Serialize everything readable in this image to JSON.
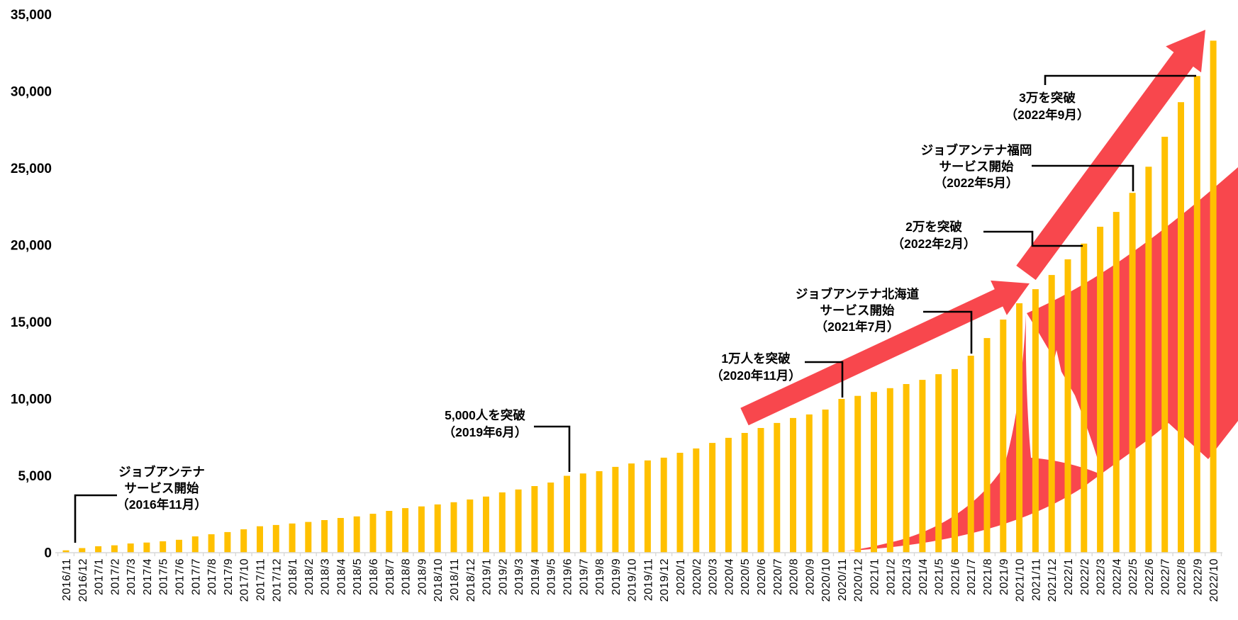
{
  "chart_data": {
    "type": "bar",
    "title": "",
    "xlabel": "",
    "ylabel": "",
    "ylim": [
      0,
      35000
    ],
    "grid": false,
    "legend": "none",
    "bar_color": "#FFC000",
    "arrow_color": "#F8474D",
    "axis_line_color": "#D9D9D9",
    "ytick_labels": [
      "0",
      "5,000",
      "10,000",
      "15,000",
      "20,000",
      "25,000",
      "30,000",
      "35,000"
    ],
    "ytick_values": [
      0,
      5000,
      10000,
      15000,
      20000,
      25000,
      30000,
      35000
    ],
    "categories": [
      "2016/11",
      "2016/12",
      "2017/1",
      "2017/2",
      "2017/3",
      "2017/4",
      "2017/5",
      "2017/6",
      "2017/7",
      "2017/8",
      "2017/9",
      "2017/10",
      "2017/11",
      "2017/12",
      "2018/1",
      "2018/2",
      "2018/3",
      "2018/4",
      "2018/5",
      "2018/6",
      "2018/7",
      "2018/8",
      "2018/9",
      "2018/10",
      "2018/11",
      "2018/12",
      "2019/1",
      "2019/2",
      "2019/3",
      "2019/4",
      "2019/5",
      "2019/6",
      "2019/7",
      "2019/8",
      "2019/9",
      "2019/10",
      "2019/11",
      "2019/12",
      "2020/1",
      "2020/2",
      "2020/3",
      "2020/4",
      "2020/5",
      "2020/6",
      "2020/7",
      "2020/8",
      "2020/9",
      "2020/10",
      "2020/11",
      "2020/12",
      "2021/1",
      "2021/2",
      "2021/3",
      "2021/4",
      "2021/5",
      "2021/6",
      "2021/7",
      "2021/8",
      "2021/9",
      "2021/10",
      "2021/11",
      "2021/12",
      "2022/1",
      "2022/2",
      "2022/3",
      "2022/4",
      "2022/5",
      "2022/6",
      "2022/7",
      "2022/8",
      "2022/9",
      "2022/10"
    ],
    "values": [
      150,
      300,
      420,
      480,
      600,
      660,
      740,
      840,
      1060,
      1200,
      1340,
      1520,
      1720,
      1800,
      1900,
      2000,
      2120,
      2260,
      2360,
      2530,
      2720,
      2900,
      3010,
      3140,
      3280,
      3460,
      3650,
      3920,
      4110,
      4330,
      4560,
      5000,
      5150,
      5300,
      5580,
      5800,
      6000,
      6180,
      6500,
      6780,
      7140,
      7470,
      7790,
      8110,
      8440,
      8760,
      8990,
      9310,
      10000,
      10200,
      10450,
      10700,
      10970,
      11240,
      11610,
      11940,
      12810,
      13960,
      15160,
      16220,
      17140,
      18060,
      19080,
      20100,
      21200,
      22160,
      23400,
      25100,
      27050,
      29300,
      31000,
      33300
    ],
    "annotations": [
      {
        "lines": [
          "ジョブアンテナ",
          "サービス開始",
          "（2016年11月）"
        ],
        "month": "2016/11"
      },
      {
        "lines": [
          "5,000人を突破",
          "（2019年6月）"
        ],
        "month": "2019/6"
      },
      {
        "lines": [
          "1万人を突破",
          "（2020年11月）"
        ],
        "month": "2020/11"
      },
      {
        "lines": [
          "ジョブアンテナ北海道",
          "サービス開始",
          "（2021年7月）"
        ],
        "month": "2021/7"
      },
      {
        "lines": [
          "2万を突破",
          "（2022年2月）"
        ],
        "month": "2022/2"
      },
      {
        "lines": [
          "ジョブアンテナ福岡",
          "サービス開始",
          "（2022年5月）"
        ],
        "month": "2022/5"
      },
      {
        "lines": [
          "3万を突破",
          "（2022年9月）"
        ],
        "month": "2022/9"
      }
    ]
  }
}
